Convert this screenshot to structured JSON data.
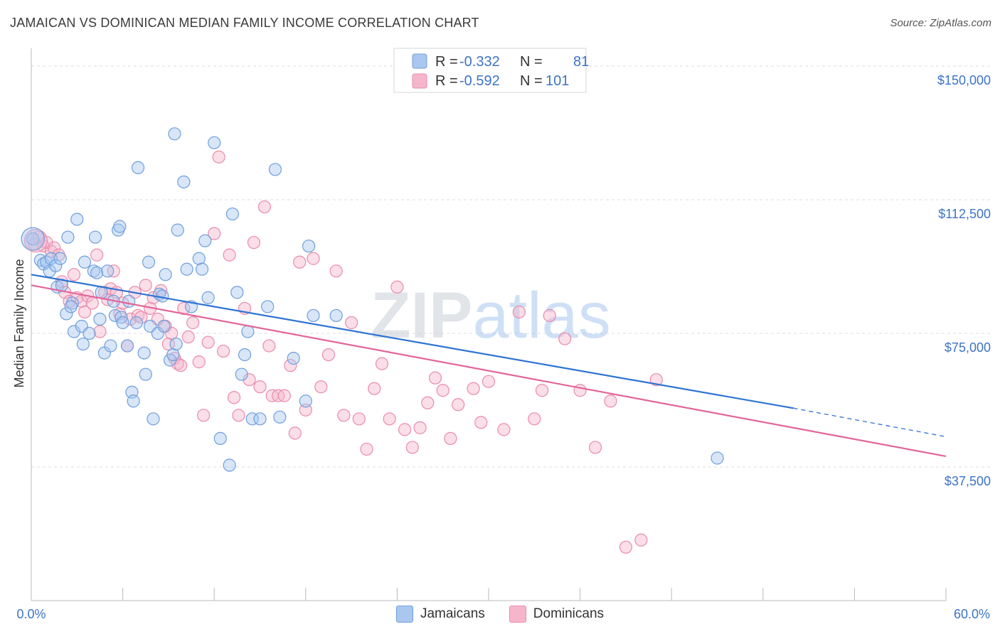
{
  "title": "JAMAICAN VS DOMINICAN MEDIAN FAMILY INCOME CORRELATION CHART",
  "source": "Source: ZipAtlas.com",
  "watermark": "ZIPatlas",
  "legend": {
    "rows": [
      {
        "r_label": "R =",
        "r_value": "-0.332",
        "n_label": "N =",
        "n_value": "81"
      },
      {
        "r_label": "R =",
        "r_value": "-0.592",
        "n_label": "N =",
        "n_value": "101"
      }
    ]
  },
  "colors": {
    "blue_fill": "#a9c7ef",
    "blue_stroke": "#6f9fdc",
    "blue_line": "#2e73d3",
    "pink_fill": "#f5b6cb",
    "pink_stroke": "#ea8bab",
    "pink_line": "#e3649a",
    "tick_label": "#3d73c6"
  },
  "chart_data": {
    "type": "scatter",
    "title": "JAMAICAN VS DOMINICAN MEDIAN FAMILY INCOME CORRELATION CHART",
    "xlabel": "",
    "ylabel": "Median Family Income",
    "xlim": [
      0,
      60
    ],
    "ylim": [
      0,
      153000
    ],
    "x_tick_labels": [
      "0.0%",
      "60.0%"
    ],
    "y_ticks": [
      37500,
      75000,
      112500,
      150000
    ],
    "y_tick_labels": [
      "$37,500",
      "$75,000",
      "$112,500",
      "$150,000"
    ],
    "grid": true,
    "legend_placement": "top-center",
    "series": [
      {
        "name": "Jamaicans",
        "color": "#a9c7ef",
        "trend": {
          "x0": 0,
          "y0": 91500,
          "x1": 50,
          "y1": 54000,
          "dash_to": 60,
          "dash_y": 46000
        },
        "points": [
          [
            0.1,
            101500
          ],
          [
            0.6,
            95500
          ],
          [
            0.8,
            94500
          ],
          [
            1.0,
            95000
          ],
          [
            1.2,
            92500
          ],
          [
            1.3,
            96000
          ],
          [
            1.6,
            94000
          ],
          [
            1.7,
            88000
          ],
          [
            1.9,
            96000
          ],
          [
            2.0,
            88500
          ],
          [
            2.3,
            80500
          ],
          [
            2.4,
            102000
          ],
          [
            2.7,
            83500
          ],
          [
            2.6,
            82500
          ],
          [
            2.8,
            75500
          ],
          [
            3.0,
            107000
          ],
          [
            3.3,
            77000
          ],
          [
            3.4,
            72000
          ],
          [
            3.5,
            95000
          ],
          [
            3.8,
            75000
          ],
          [
            4.1,
            92500
          ],
          [
            4.3,
            92000
          ],
          [
            4.2,
            102000
          ],
          [
            4.5,
            79000
          ],
          [
            4.6,
            86500
          ],
          [
            4.8,
            69500
          ],
          [
            5.0,
            92500
          ],
          [
            5.2,
            71500
          ],
          [
            5.4,
            84000
          ],
          [
            5.5,
            80000
          ],
          [
            5.7,
            104000
          ],
          [
            5.8,
            105000
          ],
          [
            5.9,
            79500
          ],
          [
            6.0,
            78000
          ],
          [
            6.3,
            71500
          ],
          [
            6.4,
            84000
          ],
          [
            6.6,
            58500
          ],
          [
            6.7,
            56000
          ],
          [
            6.9,
            78000
          ],
          [
            7.0,
            121500
          ],
          [
            7.4,
            69500
          ],
          [
            7.5,
            63500
          ],
          [
            7.7,
            95000
          ],
          [
            7.8,
            77000
          ],
          [
            8.0,
            51000
          ],
          [
            8.3,
            75000
          ],
          [
            8.4,
            86000
          ],
          [
            8.6,
            85500
          ],
          [
            8.7,
            77000
          ],
          [
            8.8,
            91500
          ],
          [
            9.1,
            67500
          ],
          [
            9.3,
            69000
          ],
          [
            9.5,
            72000
          ],
          [
            9.6,
            104000
          ],
          [
            9.4,
            131000
          ],
          [
            10.0,
            117500
          ],
          [
            10.2,
            93000
          ],
          [
            10.5,
            82500
          ],
          [
            11.0,
            96000
          ],
          [
            11.2,
            93000
          ],
          [
            11.4,
            101000
          ],
          [
            11.6,
            85000
          ],
          [
            12.0,
            128500
          ],
          [
            12.4,
            45500
          ],
          [
            13.0,
            38000
          ],
          [
            13.2,
            108500
          ],
          [
            13.5,
            86500
          ],
          [
            13.8,
            63500
          ],
          [
            14.0,
            69000
          ],
          [
            14.2,
            75500
          ],
          [
            14.5,
            51000
          ],
          [
            15.0,
            51000
          ],
          [
            15.5,
            82500
          ],
          [
            16.0,
            121000
          ],
          [
            16.3,
            51500
          ],
          [
            17.2,
            68000
          ],
          [
            18.0,
            56000
          ],
          [
            18.2,
            99500
          ],
          [
            18.5,
            80000
          ],
          [
            20.0,
            80000
          ],
          [
            45.0,
            40000
          ]
        ],
        "big_point": [
          0.1,
          101500
        ]
      },
      {
        "name": "Dominicans",
        "color": "#f5b6cb",
        "trend": {
          "x0": 0,
          "y0": 88500,
          "x1": 60,
          "y1": 40500
        },
        "points": [
          [
            0.2,
            100000
          ],
          [
            0.5,
            102000
          ],
          [
            0.8,
            99500
          ],
          [
            1.0,
            100500
          ],
          [
            1.3,
            98000
          ],
          [
            1.5,
            99000
          ],
          [
            1.8,
            97000
          ],
          [
            2.0,
            89500
          ],
          [
            2.2,
            86500
          ],
          [
            2.5,
            84000
          ],
          [
            2.8,
            91500
          ],
          [
            3.0,
            85000
          ],
          [
            3.3,
            84000
          ],
          [
            3.5,
            81000
          ],
          [
            3.7,
            85500
          ],
          [
            4.0,
            83500
          ],
          [
            4.3,
            97000
          ],
          [
            4.5,
            75500
          ],
          [
            4.8,
            86500
          ],
          [
            5.0,
            84500
          ],
          [
            5.2,
            87500
          ],
          [
            5.4,
            92500
          ],
          [
            5.6,
            86500
          ],
          [
            5.8,
            80500
          ],
          [
            6.0,
            83500
          ],
          [
            6.3,
            71500
          ],
          [
            6.5,
            79000
          ],
          [
            6.8,
            86500
          ],
          [
            7.0,
            80000
          ],
          [
            7.2,
            79500
          ],
          [
            7.5,
            88500
          ],
          [
            7.8,
            82000
          ],
          [
            8.0,
            85000
          ],
          [
            8.3,
            79000
          ],
          [
            8.5,
            87000
          ],
          [
            8.8,
            77000
          ],
          [
            9.0,
            72000
          ],
          [
            9.2,
            75000
          ],
          [
            9.4,
            68000
          ],
          [
            9.6,
            66500
          ],
          [
            9.8,
            66000
          ],
          [
            10.0,
            82000
          ],
          [
            10.3,
            74000
          ],
          [
            10.6,
            78000
          ],
          [
            11.0,
            67000
          ],
          [
            11.3,
            52000
          ],
          [
            11.6,
            72500
          ],
          [
            12.0,
            103000
          ],
          [
            12.3,
            124500
          ],
          [
            12.6,
            70000
          ],
          [
            13.0,
            97000
          ],
          [
            13.3,
            57000
          ],
          [
            13.6,
            52000
          ],
          [
            14.0,
            82000
          ],
          [
            14.3,
            62000
          ],
          [
            14.6,
            100500
          ],
          [
            15.0,
            60000
          ],
          [
            15.3,
            110500
          ],
          [
            15.6,
            71500
          ],
          [
            15.8,
            57500
          ],
          [
            16.2,
            57500
          ],
          [
            16.6,
            57500
          ],
          [
            17.0,
            66000
          ],
          [
            17.3,
            47000
          ],
          [
            17.6,
            95000
          ],
          [
            18.0,
            53500
          ],
          [
            18.5,
            96000
          ],
          [
            19.0,
            60000
          ],
          [
            19.5,
            69000
          ],
          [
            20.0,
            92500
          ],
          [
            20.5,
            52000
          ],
          [
            21.0,
            78000
          ],
          [
            21.5,
            51000
          ],
          [
            22.0,
            42500
          ],
          [
            22.5,
            59500
          ],
          [
            23.0,
            66500
          ],
          [
            23.5,
            51000
          ],
          [
            24.0,
            88000
          ],
          [
            24.5,
            48000
          ],
          [
            25.0,
            43000
          ],
          [
            25.5,
            48500
          ],
          [
            26.0,
            55500
          ],
          [
            26.5,
            62500
          ],
          [
            27.0,
            59000
          ],
          [
            27.5,
            45500
          ],
          [
            28.0,
            55000
          ],
          [
            29.0,
            59500
          ],
          [
            29.5,
            50000
          ],
          [
            30.0,
            61500
          ],
          [
            31.0,
            48000
          ],
          [
            32.0,
            81000
          ],
          [
            33.0,
            51000
          ],
          [
            33.5,
            59000
          ],
          [
            34.0,
            80000
          ],
          [
            35.0,
            73500
          ],
          [
            36.0,
            59000
          ],
          [
            37.0,
            43000
          ],
          [
            38.0,
            56000
          ],
          [
            39.0,
            15000
          ],
          [
            40.0,
            17000
          ],
          [
            41.0,
            62000
          ]
        ],
        "big_point": [
          0.3,
          101000
        ]
      }
    ]
  },
  "bottom_legend": [
    "Jamaicans",
    "Dominicans"
  ]
}
